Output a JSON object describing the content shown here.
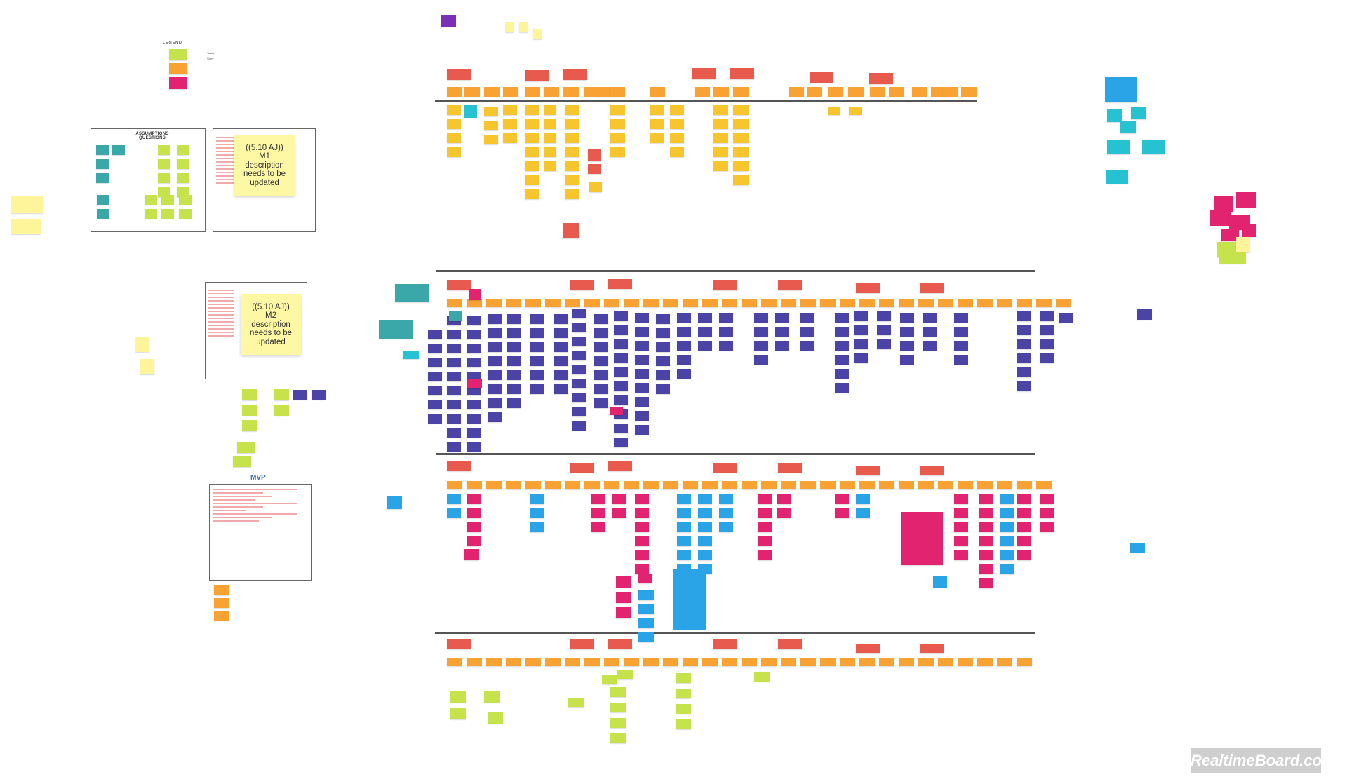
{
  "board": {
    "legend_title": "LEGEND",
    "legend_labels": [
      "Tasks",
      "Story"
    ],
    "assumptions_title": "ASSUMPTIONS\nQUESTIONS",
    "m1_sticky": "((5.10 AJ))\nM1\ndescription\nneeds to be\nupdated",
    "m2_sticky": "((5.10 AJ))\nM2\ndescription\nneeds to be\nupdated",
    "mvp_title": "MVP",
    "watermark": "RealtimeBoard.com"
  },
  "colors": {
    "red": "#e8594e",
    "orange": "#f7a233",
    "yellow": "#f7c52e",
    "lime": "#c6e34c",
    "indigo": "#4b43a6",
    "pink": "#e2236f",
    "blue": "#2aa4e6",
    "cyan": "#27c2d1",
    "teal": "#3aa8a8",
    "paleyellow": "#fef59a",
    "purple": "#7a2fb7",
    "rail": "#555555"
  }
}
